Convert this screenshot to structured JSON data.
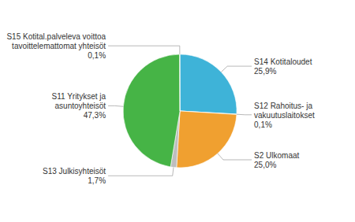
{
  "chart_data": {
    "type": "pie",
    "categories": [
      "S14 Kotitaloudet",
      "S12 Rahoitus- ja\nvakuutuslaitokset",
      "S2 Ulkomaat",
      "S13 Julkisyhteisöt",
      "S11 Yritykset ja\nasuntoyhteisöt",
      "S15 Kotital.palveleva voittoa\ntavoittelemattomat yhteisöt"
    ],
    "values": [
      25.9,
      0.1,
      25.0,
      1.7,
      47.3,
      0.1
    ],
    "value_labels": [
      "25,9%",
      "0,1%",
      "25,0%",
      "1,7%",
      "47,3%",
      "0,1%"
    ],
    "colors": [
      "#3EB3D8",
      "#F0A030",
      "#F0A030",
      "#BEBEBE",
      "#46B446",
      "#46B446"
    ],
    "data_labels": true
  }
}
